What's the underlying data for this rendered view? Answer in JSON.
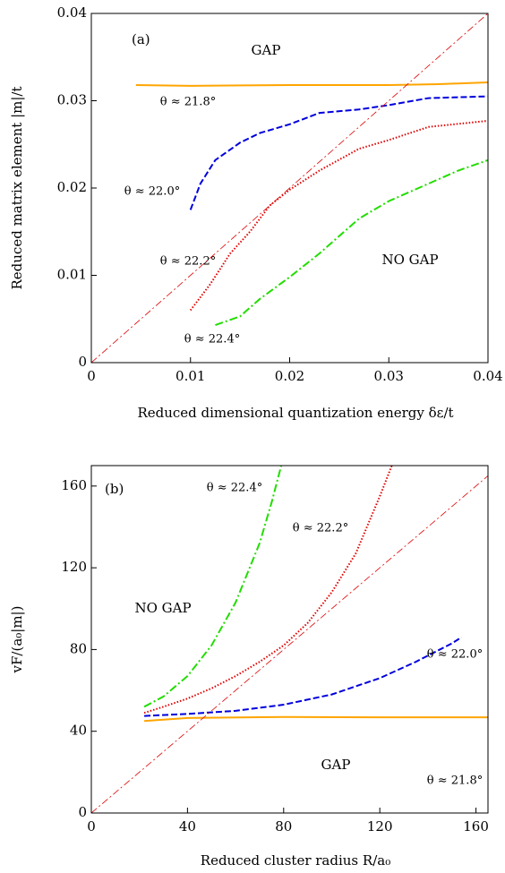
{
  "chart_data": [
    {
      "type": "line",
      "xlabel": "Reduced dimensional quantization energy δε/t",
      "ylabel": "Reduced matrix element  |m|/t",
      "xlim": [
        0,
        0.04
      ],
      "ylim": [
        0,
        0.04
      ],
      "xticks": [
        0,
        0.01,
        0.02,
        0.03,
        0.04
      ],
      "yticks": [
        0,
        0.01,
        0.02,
        0.03,
        0.04
      ],
      "annotations": [
        "(a)",
        "GAP",
        "NO GAP"
      ],
      "series": [
        {
          "name": "θ ≈ 21.8°",
          "color": "#ffa500",
          "dash": "solid",
          "x": [
            0.0045,
            0.01,
            0.02,
            0.03,
            0.035,
            0.04
          ],
          "values": [
            0.0318,
            0.0317,
            0.0318,
            0.0318,
            0.0319,
            0.0321
          ]
        },
        {
          "name": "θ ≈ 22.0°",
          "color": "#0000dd",
          "dash": "dashed",
          "x": [
            0.01,
            0.011,
            0.0125,
            0.015,
            0.017,
            0.02,
            0.023,
            0.027,
            0.03,
            0.034,
            0.04
          ],
          "values": [
            0.0175,
            0.0205,
            0.0232,
            0.0252,
            0.0263,
            0.0273,
            0.0286,
            0.029,
            0.0295,
            0.0303,
            0.0305
          ]
        },
        {
          "name": "θ ≈ 22.2°",
          "color": "#e00000",
          "dash": "dotted",
          "x": [
            0.01,
            0.012,
            0.014,
            0.016,
            0.018,
            0.02,
            0.023,
            0.027,
            0.03,
            0.034,
            0.04
          ],
          "values": [
            0.006,
            0.009,
            0.0125,
            0.015,
            0.018,
            0.0198,
            0.022,
            0.0245,
            0.0255,
            0.027,
            0.0277
          ]
        },
        {
          "name": "θ ≈ 22.4°",
          "color": "#22dd00",
          "dash": "dashdot",
          "x": [
            0.0125,
            0.015,
            0.017,
            0.02,
            0.023,
            0.027,
            0.03,
            0.034,
            0.037,
            0.04
          ],
          "values": [
            0.0043,
            0.0053,
            0.0073,
            0.0098,
            0.0125,
            0.0165,
            0.0185,
            0.0205,
            0.022,
            0.0232
          ]
        },
        {
          "color": "#dd0000",
          "dash": "thindashdot",
          "x": [
            0,
            0.04
          ],
          "values": [
            0,
            0.04
          ]
        }
      ]
    },
    {
      "type": "line",
      "xlabel": "Reduced cluster radius R/a₀",
      "ylabel": "vF/(a₀|m|)",
      "xlim": [
        0,
        165
      ],
      "ylim": [
        0,
        170
      ],
      "xticks": [
        0,
        40,
        80,
        120,
        160
      ],
      "yticks": [
        0,
        40,
        80,
        120,
        160
      ],
      "annotations": [
        "(b)",
        "NO GAP",
        "GAP"
      ],
      "series": [
        {
          "name": "θ ≈ 21.8°",
          "color": "#ffa500",
          "dash": "solid",
          "x": [
            22,
            40,
            80,
            120,
            165
          ],
          "values": [
            45,
            46.5,
            47,
            46.8,
            46.8
          ]
        },
        {
          "name": "θ ≈ 22.0°",
          "color": "#0000dd",
          "dash": "dashed",
          "x": [
            22,
            40,
            60,
            80,
            100,
            120,
            135,
            150,
            154
          ],
          "values": [
            47.5,
            48.5,
            50,
            53,
            58,
            66,
            74,
            83,
            86
          ]
        },
        {
          "name": "θ ≈ 22.2°",
          "color": "#e00000",
          "dash": "dotted",
          "x": [
            22,
            30,
            40,
            50,
            60,
            70,
            80,
            90,
            100,
            110,
            120,
            125
          ],
          "values": [
            49,
            52,
            56,
            61,
            67,
            74,
            82,
            93,
            108,
            127,
            155,
            170
          ]
        },
        {
          "name": "θ ≈ 22.4°",
          "color": "#22dd00",
          "dash": "dashdot",
          "x": [
            22,
            30,
            40,
            50,
            60,
            70,
            75,
            79
          ],
          "values": [
            52,
            57,
            67,
            82,
            103,
            132,
            152,
            170
          ]
        },
        {
          "color": "#dd0000",
          "dash": "thindashdot",
          "x": [
            0,
            165
          ],
          "values": [
            0,
            165
          ]
        }
      ]
    }
  ]
}
